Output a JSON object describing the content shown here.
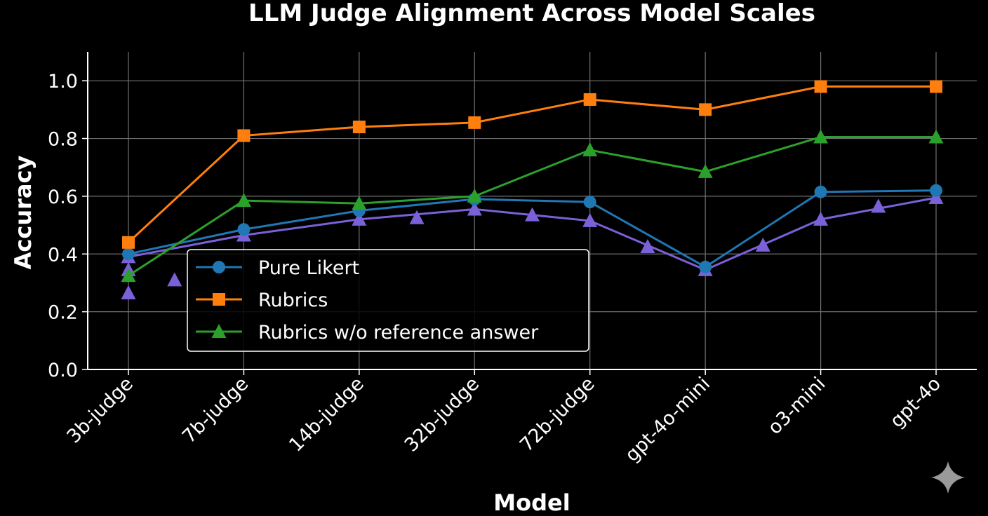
{
  "chart_data": {
    "type": "line",
    "title": "LLM Judge Alignment Across Model Scales",
    "xlabel": "Model",
    "ylabel": "Accuracy",
    "categories": [
      "3b-judge",
      "7b-judge",
      "14b-judge",
      "32b-judge",
      "72b-judge",
      "gpt-4o-mini",
      "o3-mini",
      "gpt-4o"
    ],
    "yticks": [
      "0.0",
      "0.2",
      "0.4",
      "0.6",
      "0.8",
      "1.0"
    ],
    "ylim": [
      0,
      1.1
    ],
    "grid": true,
    "legend_position": "center-left",
    "series": [
      {
        "name": "Pure Likert",
        "marker": "circle",
        "color": "#1f77b4",
        "values": [
          0.4,
          0.485,
          0.55,
          0.59,
          0.58,
          0.355,
          0.615,
          0.62
        ]
      },
      {
        "name": "Rubrics",
        "marker": "square",
        "color": "#ff7f0e",
        "values": [
          0.44,
          0.81,
          0.84,
          0.855,
          0.935,
          0.9,
          0.98,
          0.98
        ]
      },
      {
        "name": "Rubrics w/o reference answer",
        "marker": "triangle",
        "color": "#2ca02c",
        "values": [
          0.325,
          0.585,
          0.575,
          0.6,
          0.76,
          0.685,
          0.805,
          0.805
        ]
      }
    ],
    "extra_series": [
      {
        "marker": "triangle",
        "color": "#7b61d9",
        "points": [
          {
            "x": 0,
            "y": 0.39
          },
          {
            "x": 1,
            "y": 0.465
          },
          {
            "x": 2,
            "y": 0.52
          },
          {
            "x": 3,
            "y": 0.555
          },
          {
            "x": 4,
            "y": 0.515
          },
          {
            "x": 5,
            "y": 0.345
          },
          {
            "x": 6,
            "y": 0.52
          },
          {
            "x": 7,
            "y": 0.595
          }
        ],
        "extra_markers": [
          {
            "x": 0,
            "y": 0.345
          },
          {
            "x": 0,
            "y": 0.265
          },
          {
            "x": 0.4,
            "y": 0.31
          },
          {
            "x": 2.5,
            "y": 0.525
          },
          {
            "x": 3.5,
            "y": 0.535
          },
          {
            "x": 4.5,
            "y": 0.425
          },
          {
            "x": 5.5,
            "y": 0.43
          },
          {
            "x": 6.5,
            "y": 0.565
          }
        ]
      }
    ]
  },
  "watermark": {
    "icon": "sparkle-icon",
    "color": "#9a9a9a"
  }
}
